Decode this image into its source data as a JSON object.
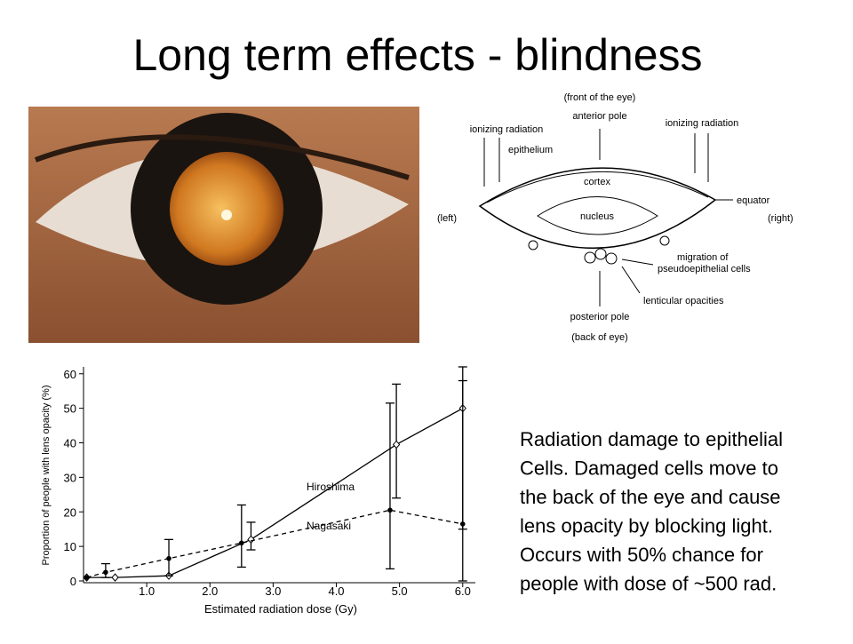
{
  "title": "Long term effects - blindness",
  "diagram": {
    "labels": {
      "front": "(front of the eye)",
      "anterior": "anterior pole",
      "radiation_left": "ionizing radiation",
      "radiation_right": "ionizing radiation",
      "epithelium": "epithelium",
      "cortex": "cortex",
      "nucleus": "nucleus",
      "equator": "equator",
      "left": "(left)",
      "right": "(right)",
      "migration": "migration of",
      "pseudo": "pseudoepithelial cells",
      "opacities": "lenticular opacities",
      "posterior": "posterior pole",
      "back": "(back of eye)"
    }
  },
  "chart_data": {
    "type": "line",
    "x_label": "Estimated radiation dose (Gy)",
    "y_label": "Proportion of people with lens opacity (%)",
    "xlim": [
      0,
      6.2
    ],
    "ylim": [
      0,
      62
    ],
    "xticks": [
      {
        "value": 1,
        "label": "1.0"
      },
      {
        "value": 2,
        "label": "2.0"
      },
      {
        "value": 3,
        "label": "3.0"
      },
      {
        "value": 4,
        "label": "4.0"
      },
      {
        "value": 5,
        "label": "5.0"
      },
      {
        "value": 6,
        "label": "6.0"
      }
    ],
    "yticks": [
      0,
      10,
      20,
      30,
      40,
      50,
      60
    ],
    "series": [
      {
        "name": "Hiroshima",
        "color": "#000000",
        "dash": false,
        "marker": "diamond",
        "x": [
          0.05,
          0.5,
          1.35,
          2.65,
          4.95,
          6.0
        ],
        "values": [
          1,
          1,
          1.5,
          12,
          39.5,
          50
        ],
        "lower": [
          null,
          null,
          null,
          9,
          24,
          15
        ],
        "upper": [
          null,
          null,
          null,
          17,
          57,
          62
        ]
      },
      {
        "name": "Nagasaki",
        "color": "#000000",
        "dash": true,
        "marker": "dot",
        "x": [
          0.05,
          0.35,
          1.35,
          2.5,
          4.85,
          6.0
        ],
        "values": [
          1,
          2.5,
          6.5,
          11,
          20.5,
          16.5
        ],
        "lower": [
          null,
          1,
          1.5,
          4,
          3.5,
          0
        ],
        "upper": [
          null,
          5,
          12,
          22,
          51.5,
          58
        ]
      }
    ]
  },
  "body_text": [
    "Radiation damage to epithelial",
    "Cells. Damaged cells move to",
    "the back of the eye and cause",
    "lens opacity by blocking light.",
    "Occurs with 50% chance for",
    "people with dose of ~500 rad."
  ]
}
